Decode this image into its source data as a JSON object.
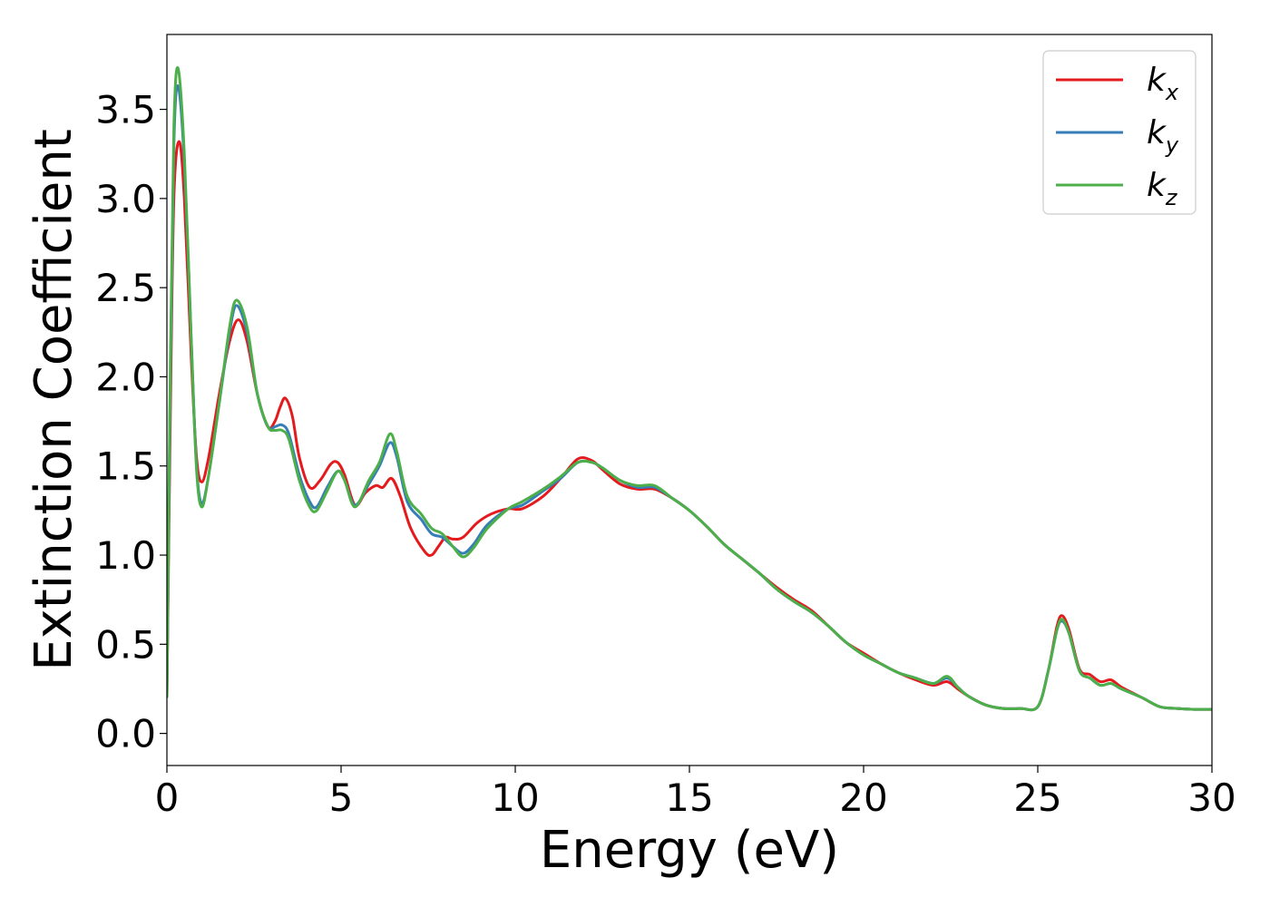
{
  "chart_data": {
    "type": "line",
    "title": "",
    "xlabel": "Energy (eV)",
    "ylabel": "Extinction Coefficient",
    "xlim": [
      0,
      30
    ],
    "ylim": [
      -0.18,
      3.92
    ],
    "xticks": [
      0,
      5,
      10,
      15,
      20,
      25,
      30
    ],
    "xtick_labels": [
      "0",
      "5",
      "10",
      "15",
      "20",
      "25",
      "30"
    ],
    "yticks": [
      0.0,
      0.5,
      1.0,
      1.5,
      2.0,
      2.5,
      3.0,
      3.5
    ],
    "ytick_labels": [
      "0.0",
      "0.5",
      "1.0",
      "1.5",
      "2.0",
      "2.5",
      "3.0",
      "3.5"
    ],
    "grid": false,
    "legend_position": "top-right",
    "series": [
      {
        "name": "k",
        "subscript": "x",
        "color": "#e41a1c",
        "points": [
          [
            0,
            0.2
          ],
          [
            0.1,
            1.8
          ],
          [
            0.2,
            3.0
          ],
          [
            0.35,
            3.32
          ],
          [
            0.5,
            3.0
          ],
          [
            0.7,
            2.1
          ],
          [
            0.85,
            1.55
          ],
          [
            1.0,
            1.41
          ],
          [
            1.2,
            1.55
          ],
          [
            1.5,
            1.9
          ],
          [
            1.8,
            2.2
          ],
          [
            2.05,
            2.32
          ],
          [
            2.3,
            2.2
          ],
          [
            2.6,
            1.9
          ],
          [
            2.9,
            1.72
          ],
          [
            3.1,
            1.75
          ],
          [
            3.25,
            1.83
          ],
          [
            3.4,
            1.88
          ],
          [
            3.6,
            1.78
          ],
          [
            3.8,
            1.55
          ],
          [
            4.1,
            1.38
          ],
          [
            4.4,
            1.42
          ],
          [
            4.7,
            1.51
          ],
          [
            4.9,
            1.52
          ],
          [
            5.1,
            1.45
          ],
          [
            5.4,
            1.28
          ],
          [
            5.7,
            1.35
          ],
          [
            6.0,
            1.39
          ],
          [
            6.2,
            1.38
          ],
          [
            6.45,
            1.43
          ],
          [
            6.7,
            1.33
          ],
          [
            7.0,
            1.15
          ],
          [
            7.4,
            1.02
          ],
          [
            7.6,
            1.0
          ],
          [
            7.8,
            1.05
          ],
          [
            8.0,
            1.1
          ],
          [
            8.2,
            1.09
          ],
          [
            8.5,
            1.1
          ],
          [
            8.9,
            1.18
          ],
          [
            9.3,
            1.23
          ],
          [
            9.8,
            1.26
          ],
          [
            10.2,
            1.26
          ],
          [
            10.8,
            1.33
          ],
          [
            11.3,
            1.43
          ],
          [
            11.8,
            1.54
          ],
          [
            12.2,
            1.53
          ],
          [
            12.5,
            1.48
          ],
          [
            13.0,
            1.4
          ],
          [
            13.5,
            1.37
          ],
          [
            14.0,
            1.37
          ],
          [
            14.5,
            1.32
          ],
          [
            15.0,
            1.25
          ],
          [
            15.5,
            1.16
          ],
          [
            16.0,
            1.06
          ],
          [
            16.5,
            0.98
          ],
          [
            17.0,
            0.9
          ],
          [
            17.5,
            0.82
          ],
          [
            18.0,
            0.75
          ],
          [
            18.5,
            0.69
          ],
          [
            19.0,
            0.6
          ],
          [
            19.5,
            0.51
          ],
          [
            20.0,
            0.45
          ],
          [
            20.5,
            0.39
          ],
          [
            21.0,
            0.34
          ],
          [
            21.5,
            0.3
          ],
          [
            22.0,
            0.27
          ],
          [
            22.4,
            0.29
          ],
          [
            22.7,
            0.25
          ],
          [
            23.0,
            0.21
          ],
          [
            23.5,
            0.16
          ],
          [
            24.0,
            0.14
          ],
          [
            24.5,
            0.14
          ],
          [
            25.0,
            0.15
          ],
          [
            25.3,
            0.35
          ],
          [
            25.55,
            0.6
          ],
          [
            25.7,
            0.66
          ],
          [
            25.9,
            0.58
          ],
          [
            26.2,
            0.36
          ],
          [
            26.5,
            0.33
          ],
          [
            26.8,
            0.29
          ],
          [
            27.1,
            0.3
          ],
          [
            27.4,
            0.26
          ],
          [
            28.0,
            0.2
          ],
          [
            28.5,
            0.15
          ],
          [
            29.0,
            0.14
          ],
          [
            29.5,
            0.135
          ],
          [
            30.0,
            0.135
          ]
        ]
      },
      {
        "name": "k",
        "subscript": "y",
        "color": "#377eb8",
        "points": [
          [
            0,
            0.2
          ],
          [
            0.1,
            2.0
          ],
          [
            0.2,
            3.3
          ],
          [
            0.32,
            3.63
          ],
          [
            0.5,
            3.2
          ],
          [
            0.7,
            2.2
          ],
          [
            0.85,
            1.5
          ],
          [
            1.0,
            1.29
          ],
          [
            1.2,
            1.45
          ],
          [
            1.5,
            1.85
          ],
          [
            1.8,
            2.25
          ],
          [
            2.0,
            2.4
          ],
          [
            2.3,
            2.25
          ],
          [
            2.6,
            1.9
          ],
          [
            2.9,
            1.72
          ],
          [
            3.1,
            1.72
          ],
          [
            3.3,
            1.73
          ],
          [
            3.5,
            1.68
          ],
          [
            3.8,
            1.45
          ],
          [
            4.1,
            1.3
          ],
          [
            4.3,
            1.27
          ],
          [
            4.6,
            1.38
          ],
          [
            4.9,
            1.47
          ],
          [
            5.1,
            1.42
          ],
          [
            5.4,
            1.28
          ],
          [
            5.8,
            1.4
          ],
          [
            6.1,
            1.5
          ],
          [
            6.4,
            1.63
          ],
          [
            6.6,
            1.55
          ],
          [
            6.9,
            1.3
          ],
          [
            7.3,
            1.2
          ],
          [
            7.6,
            1.12
          ],
          [
            7.9,
            1.1
          ],
          [
            8.2,
            1.05
          ],
          [
            8.5,
            1.01
          ],
          [
            8.8,
            1.06
          ],
          [
            9.2,
            1.17
          ],
          [
            9.8,
            1.26
          ],
          [
            10.2,
            1.28
          ],
          [
            10.8,
            1.36
          ],
          [
            11.3,
            1.43
          ],
          [
            11.8,
            1.52
          ],
          [
            12.2,
            1.52
          ],
          [
            12.5,
            1.49
          ],
          [
            13.0,
            1.42
          ],
          [
            13.5,
            1.38
          ],
          [
            14.0,
            1.38
          ],
          [
            14.5,
            1.32
          ],
          [
            15.0,
            1.25
          ],
          [
            15.5,
            1.16
          ],
          [
            16.0,
            1.06
          ],
          [
            16.5,
            0.98
          ],
          [
            17.0,
            0.9
          ],
          [
            17.5,
            0.81
          ],
          [
            18.0,
            0.74
          ],
          [
            18.5,
            0.68
          ],
          [
            19.0,
            0.6
          ],
          [
            19.5,
            0.51
          ],
          [
            20.0,
            0.44
          ],
          [
            20.5,
            0.39
          ],
          [
            21.0,
            0.34
          ],
          [
            21.5,
            0.31
          ],
          [
            22.0,
            0.28
          ],
          [
            22.4,
            0.31
          ],
          [
            22.7,
            0.26
          ],
          [
            23.0,
            0.21
          ],
          [
            23.5,
            0.16
          ],
          [
            24.0,
            0.14
          ],
          [
            24.5,
            0.14
          ],
          [
            25.0,
            0.15
          ],
          [
            25.3,
            0.35
          ],
          [
            25.55,
            0.58
          ],
          [
            25.7,
            0.63
          ],
          [
            25.9,
            0.56
          ],
          [
            26.2,
            0.35
          ],
          [
            26.5,
            0.31
          ],
          [
            26.8,
            0.27
          ],
          [
            27.1,
            0.28
          ],
          [
            27.4,
            0.25
          ],
          [
            28.0,
            0.2
          ],
          [
            28.5,
            0.15
          ],
          [
            29.0,
            0.14
          ],
          [
            29.5,
            0.135
          ],
          [
            30.0,
            0.135
          ]
        ]
      },
      {
        "name": "k",
        "subscript": "z",
        "color": "#4daf4a",
        "points": [
          [
            0,
            0.2
          ],
          [
            0.1,
            2.1
          ],
          [
            0.2,
            3.4
          ],
          [
            0.32,
            3.73
          ],
          [
            0.5,
            3.25
          ],
          [
            0.7,
            2.2
          ],
          [
            0.85,
            1.48
          ],
          [
            1.0,
            1.27
          ],
          [
            1.2,
            1.45
          ],
          [
            1.5,
            1.85
          ],
          [
            1.8,
            2.28
          ],
          [
            2.0,
            2.43
          ],
          [
            2.3,
            2.28
          ],
          [
            2.6,
            1.9
          ],
          [
            2.9,
            1.72
          ],
          [
            3.1,
            1.7
          ],
          [
            3.3,
            1.7
          ],
          [
            3.5,
            1.65
          ],
          [
            3.8,
            1.42
          ],
          [
            4.1,
            1.27
          ],
          [
            4.3,
            1.25
          ],
          [
            4.6,
            1.36
          ],
          [
            4.9,
            1.47
          ],
          [
            5.1,
            1.42
          ],
          [
            5.4,
            1.27
          ],
          [
            5.8,
            1.42
          ],
          [
            6.1,
            1.52
          ],
          [
            6.4,
            1.68
          ],
          [
            6.6,
            1.58
          ],
          [
            6.9,
            1.33
          ],
          [
            7.3,
            1.23
          ],
          [
            7.6,
            1.15
          ],
          [
            7.9,
            1.12
          ],
          [
            8.2,
            1.05
          ],
          [
            8.5,
            0.99
          ],
          [
            8.8,
            1.04
          ],
          [
            9.2,
            1.15
          ],
          [
            9.8,
            1.26
          ],
          [
            10.2,
            1.3
          ],
          [
            10.8,
            1.37
          ],
          [
            11.3,
            1.44
          ],
          [
            11.8,
            1.52
          ],
          [
            12.2,
            1.52
          ],
          [
            12.5,
            1.49
          ],
          [
            13.0,
            1.42
          ],
          [
            13.5,
            1.39
          ],
          [
            14.0,
            1.39
          ],
          [
            14.5,
            1.32
          ],
          [
            15.0,
            1.25
          ],
          [
            15.5,
            1.16
          ],
          [
            16.0,
            1.06
          ],
          [
            16.5,
            0.98
          ],
          [
            17.0,
            0.9
          ],
          [
            17.5,
            0.81
          ],
          [
            18.0,
            0.74
          ],
          [
            18.5,
            0.68
          ],
          [
            19.0,
            0.6
          ],
          [
            19.5,
            0.51
          ],
          [
            20.0,
            0.44
          ],
          [
            20.5,
            0.39
          ],
          [
            21.0,
            0.34
          ],
          [
            21.5,
            0.31
          ],
          [
            22.0,
            0.28
          ],
          [
            22.4,
            0.32
          ],
          [
            22.7,
            0.26
          ],
          [
            23.0,
            0.21
          ],
          [
            23.5,
            0.16
          ],
          [
            24.0,
            0.14
          ],
          [
            24.5,
            0.14
          ],
          [
            25.0,
            0.15
          ],
          [
            25.3,
            0.35
          ],
          [
            25.55,
            0.58
          ],
          [
            25.7,
            0.64
          ],
          [
            25.9,
            0.56
          ],
          [
            26.2,
            0.35
          ],
          [
            26.5,
            0.31
          ],
          [
            26.8,
            0.27
          ],
          [
            27.1,
            0.28
          ],
          [
            27.4,
            0.25
          ],
          [
            28.0,
            0.2
          ],
          [
            28.5,
            0.15
          ],
          [
            29.0,
            0.14
          ],
          [
            29.5,
            0.135
          ],
          [
            30.0,
            0.135
          ]
        ]
      }
    ]
  }
}
